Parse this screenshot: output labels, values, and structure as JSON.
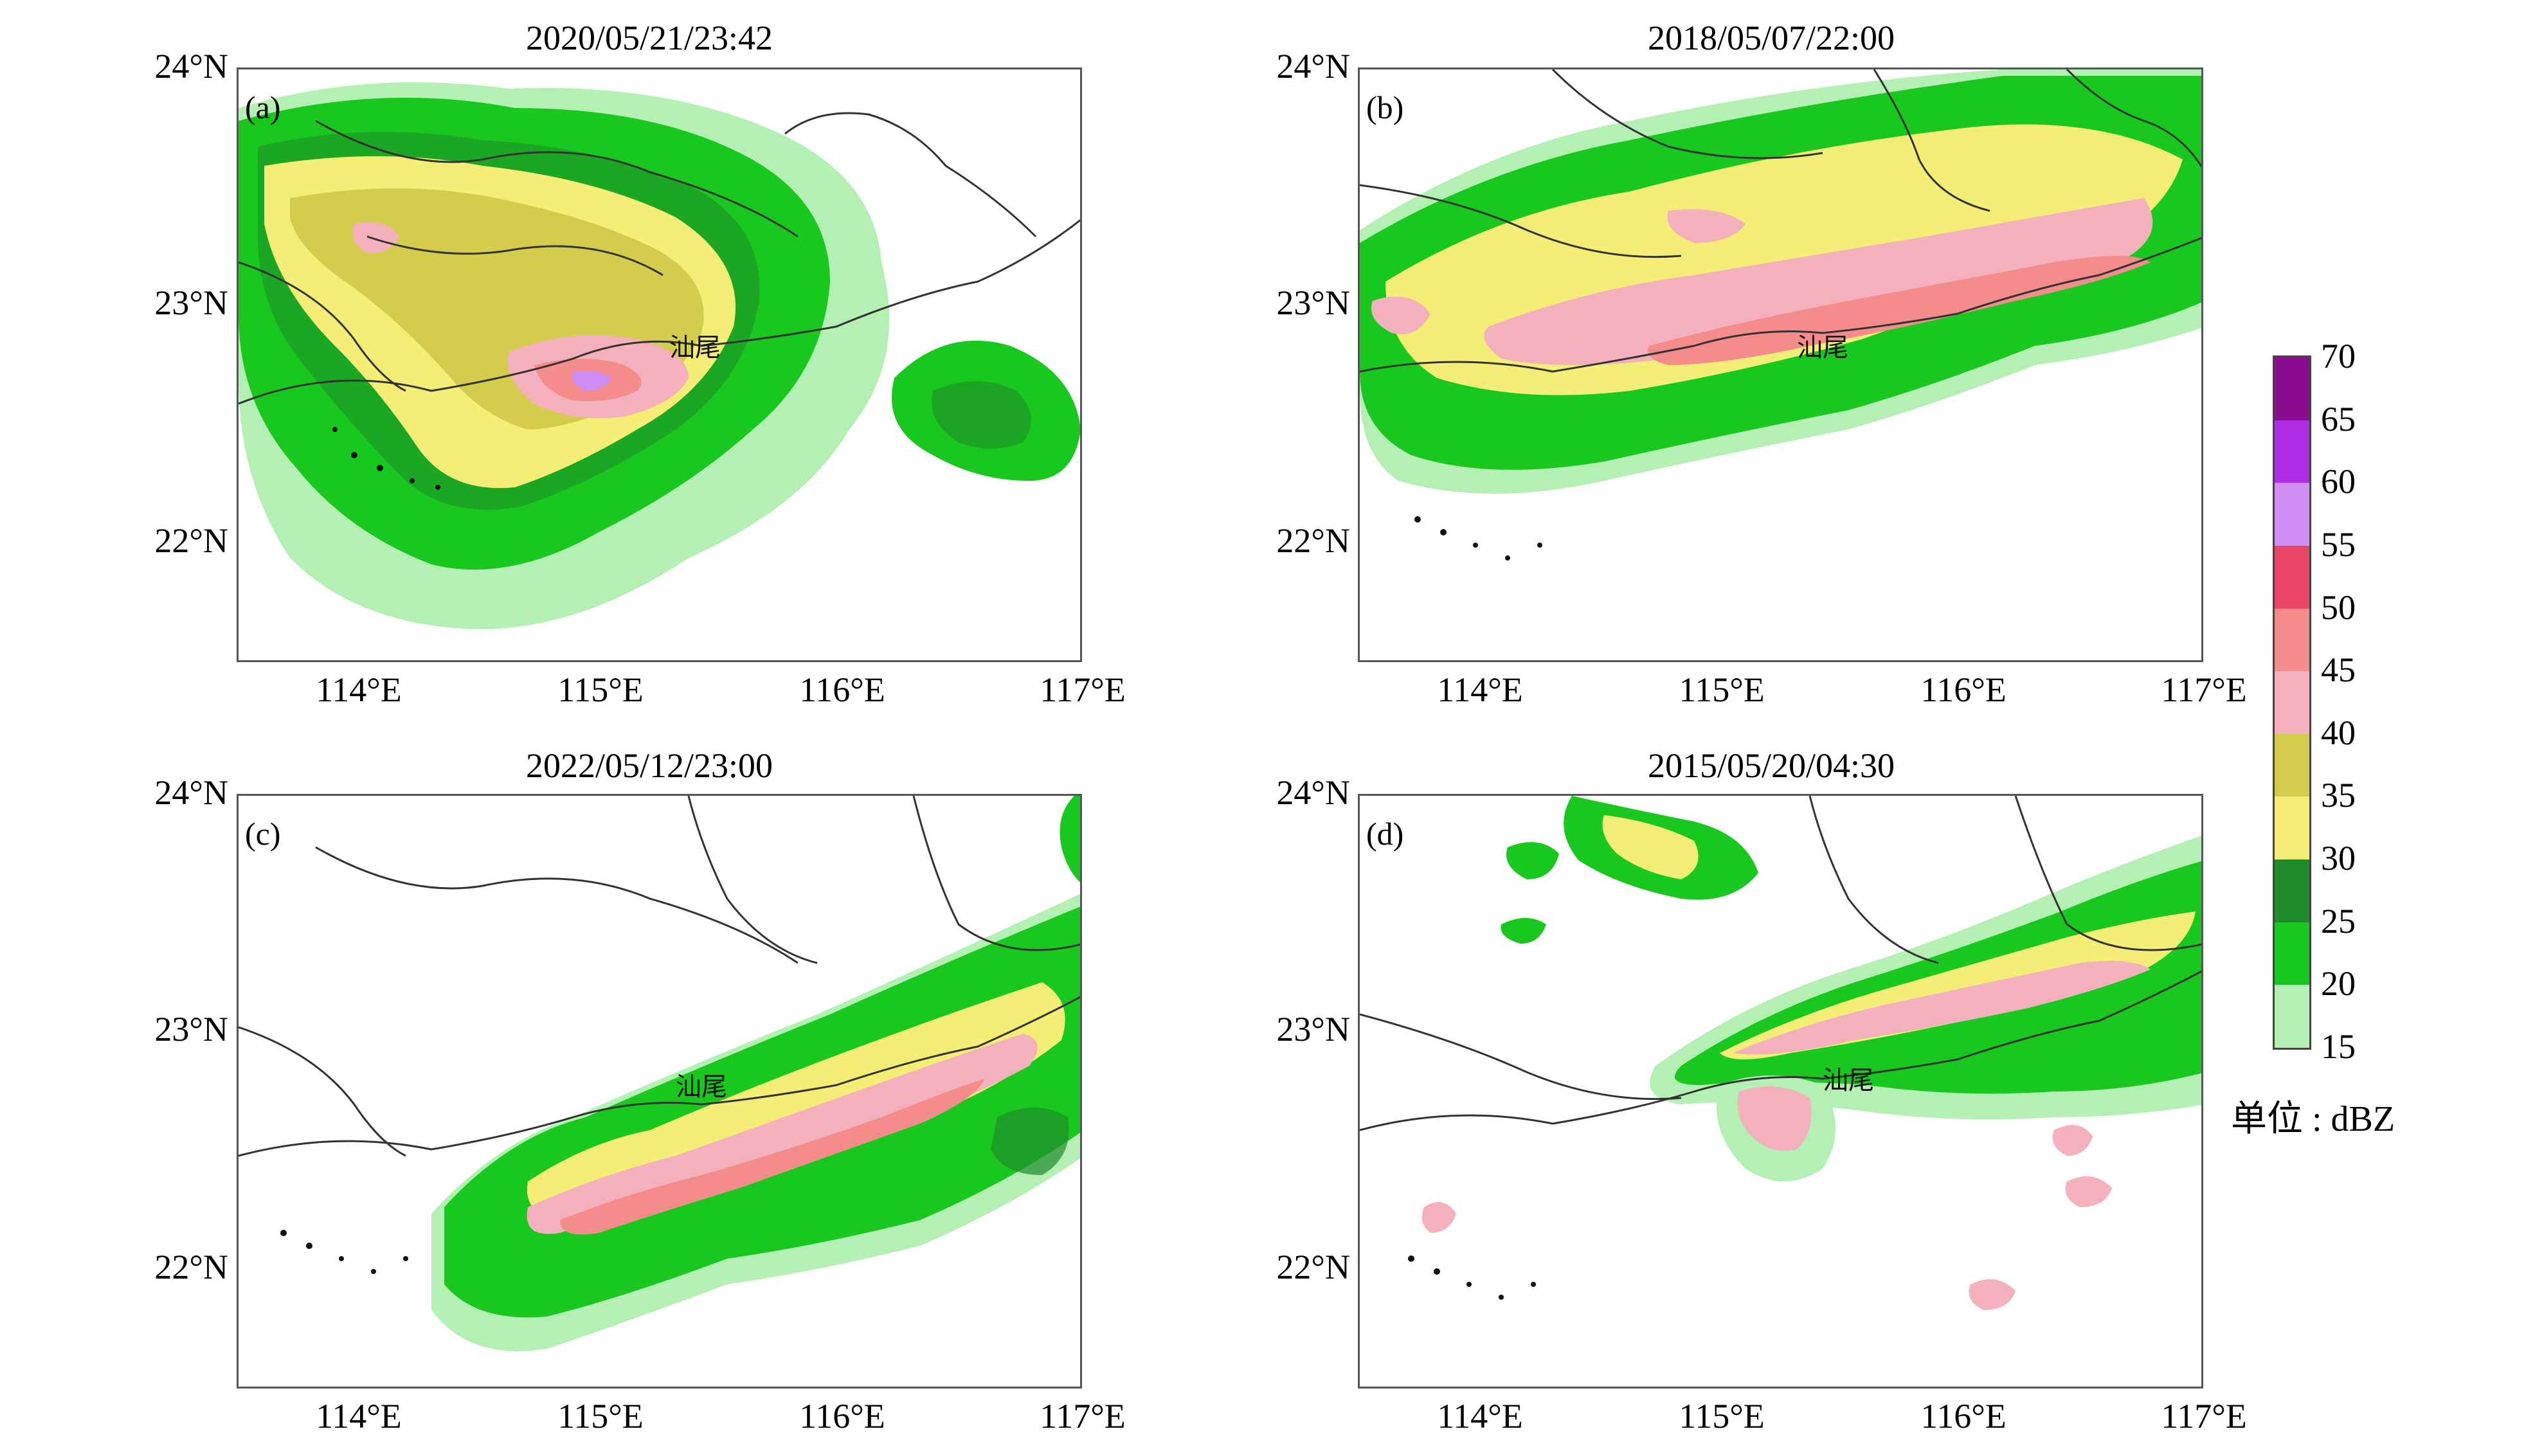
{
  "panels": [
    {
      "id": "a",
      "title": "2020/05/21/23:42",
      "label": "(a)",
      "city": "汕尾"
    },
    {
      "id": "b",
      "title": "2018/05/07/22:00",
      "label": "(b)",
      "city": "汕尾"
    },
    {
      "id": "c",
      "title": "2022/05/12/23:00",
      "label": "(c)",
      "city": "汕尾"
    },
    {
      "id": "d",
      "title": "2015/05/20/04:30",
      "label": "(d)",
      "city": "汕尾"
    }
  ],
  "axes": {
    "lon_ticks": [
      "114°E",
      "115°E",
      "116°E",
      "117°E"
    ],
    "lat_ticks": [
      "24°N",
      "23°N",
      "22°N"
    ],
    "lon_range": [
      113.5,
      117.0
    ],
    "lat_range": [
      21.5,
      24.0
    ]
  },
  "colorbar": {
    "ticks": [
      "70",
      "65",
      "60",
      "55",
      "50",
      "45",
      "40",
      "35",
      "30",
      "25",
      "20",
      "15"
    ],
    "colors": [
      "#8b0d8f",
      "#b02de8",
      "#d08cf5",
      "#e94668",
      "#f58c8c",
      "#f5b0bd",
      "#d4cc4d",
      "#f4ee76",
      "#1f8c2a",
      "#18c81e",
      "#b4efb4"
    ],
    "unit": "单位 : dBZ"
  }
}
